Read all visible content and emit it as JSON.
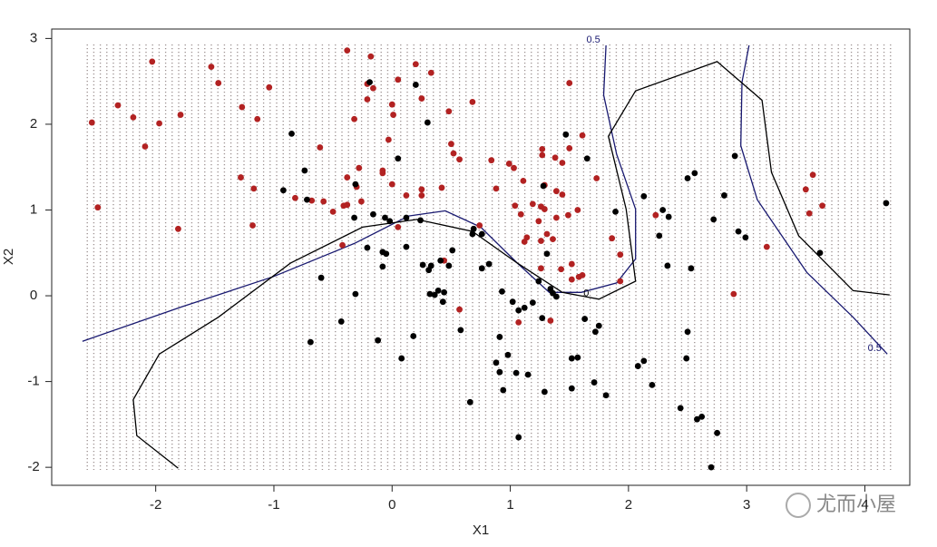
{
  "chart_data": {
    "type": "scatter",
    "xlabel": "X1",
    "ylabel": "X2",
    "xlim": [
      -2.88,
      4.38
    ],
    "ylim": [
      -2.21,
      3.11
    ],
    "xticks": [
      -2,
      -1,
      0,
      1,
      2,
      3,
      4
    ],
    "yticks": [
      -2,
      -1,
      0,
      1,
      2,
      3
    ],
    "watermark": "尤而小屋",
    "series": [
      {
        "color": "#b22222",
        "x": [
          -2.54,
          -2.49,
          -2.32,
          -2.19,
          -2.09,
          -2.03,
          -1.97,
          -1.81,
          -1.79,
          -1.53,
          -1.47,
          -1.27,
          -1.28,
          -1.17,
          -1.18,
          -1.14,
          -1.04,
          -0.82,
          -0.68,
          -0.58,
          -0.61,
          -0.5,
          -0.41,
          -0.38,
          -0.42,
          -0.38,
          -0.38,
          -0.32,
          -0.3,
          -0.28,
          -0.26,
          -0.21,
          -0.21,
          -0.18,
          -0.16,
          -0.08,
          -0.08,
          -0.03,
          0.0,
          0.01,
          0.0,
          0.05,
          0.05,
          0.12,
          0.2,
          0.25,
          0.25,
          0.25,
          0.33,
          0.42,
          0.44,
          0.48,
          0.5,
          0.52,
          0.57,
          0.57,
          0.68,
          0.74,
          0.84,
          0.88,
          0.99,
          1.03,
          1.04,
          1.07,
          1.09,
          1.12,
          1.11,
          1.14,
          1.19,
          1.24,
          1.26,
          1.26,
          1.26,
          1.27,
          1.27,
          1.29,
          1.29,
          1.31,
          1.34,
          1.36,
          1.38,
          1.39,
          1.39,
          1.44,
          1.43,
          1.44,
          1.49,
          1.5,
          1.5,
          1.52,
          1.52,
          1.57,
          1.61,
          1.58,
          1.61,
          1.73,
          1.86,
          1.93,
          1.93,
          2.23,
          2.89,
          3.17,
          3.5,
          3.53,
          3.56,
          3.64
        ],
        "y": [
          2.02,
          1.03,
          2.22,
          2.08,
          1.74,
          2.73,
          2.01,
          0.78,
          2.11,
          2.67,
          2.48,
          2.2,
          1.38,
          1.25,
          0.82,
          2.06,
          2.43,
          1.14,
          1.11,
          1.1,
          1.73,
          0.98,
          1.05,
          1.06,
          0.59,
          2.86,
          1.38,
          2.06,
          1.27,
          1.49,
          1.1,
          2.29,
          2.47,
          2.79,
          2.42,
          1.46,
          1.43,
          1.82,
          2.23,
          2.11,
          1.3,
          2.52,
          0.8,
          1.17,
          2.7,
          2.3,
          1.24,
          1.17,
          2.6,
          1.26,
          0.41,
          2.15,
          1.77,
          1.66,
          1.59,
          -0.16,
          2.26,
          0.82,
          1.58,
          1.25,
          1.54,
          1.49,
          1.05,
          -0.31,
          0.95,
          0.63,
          1.34,
          0.68,
          1.07,
          0.87,
          1.04,
          0.64,
          0.32,
          1.71,
          1.64,
          1.29,
          1.01,
          0.72,
          -0.29,
          0.66,
          1.61,
          1.22,
          0.91,
          1.18,
          0.31,
          1.55,
          0.94,
          1.72,
          2.48,
          0.19,
          0.37,
          1.0,
          1.87,
          0.22,
          0.24,
          1.37,
          0.67,
          0.17,
          0.48,
          0.94,
          0.02,
          0.57,
          1.24,
          0.96,
          1.41,
          1.05
        ]
      },
      {
        "color": "#000000",
        "x": [
          -0.85,
          -0.92,
          -0.74,
          -0.72,
          -0.69,
          -0.6,
          -0.32,
          -0.31,
          -0.31,
          -0.43,
          -0.21,
          -0.19,
          -0.16,
          -0.12,
          -0.08,
          -0.08,
          -0.06,
          -0.05,
          -0.02,
          0.05,
          0.08,
          0.12,
          0.12,
          0.18,
          0.2,
          0.24,
          0.26,
          0.3,
          0.31,
          0.32,
          0.33,
          0.36,
          0.39,
          0.41,
          0.43,
          0.44,
          0.48,
          0.51,
          0.58,
          0.66,
          0.68,
          0.69,
          0.76,
          0.76,
          0.82,
          0.88,
          0.91,
          0.91,
          0.93,
          0.94,
          0.98,
          1.02,
          1.05,
          1.07,
          1.07,
          1.12,
          1.15,
          1.19,
          1.24,
          1.27,
          1.28,
          1.29,
          1.31,
          1.34,
          1.36,
          1.39,
          1.47,
          1.52,
          1.52,
          1.57,
          1.63,
          1.65,
          1.71,
          1.72,
          1.75,
          1.81,
          1.89,
          2.08,
          2.13,
          2.13,
          2.2,
          2.26,
          2.29,
          2.33,
          2.34,
          2.44,
          2.49,
          2.5,
          2.5,
          2.53,
          2.56,
          2.58,
          2.62,
          2.7,
          2.72,
          2.75,
          2.81,
          2.9,
          2.93,
          2.99,
          3.62,
          4.18
        ],
        "y": [
          1.89,
          1.23,
          1.46,
          1.12,
          -0.54,
          0.21,
          0.91,
          1.3,
          0.02,
          -0.3,
          0.56,
          2.49,
          0.95,
          -0.52,
          0.34,
          0.51,
          0.91,
          0.49,
          0.87,
          1.6,
          -0.73,
          0.57,
          0.91,
          -0.47,
          2.46,
          0.88,
          0.36,
          2.02,
          0.3,
          0.02,
          0.35,
          0.01,
          0.06,
          0.41,
          -0.07,
          0.04,
          0.35,
          0.53,
          -0.4,
          -1.24,
          0.72,
          0.78,
          0.72,
          0.32,
          0.37,
          -0.78,
          -0.89,
          -0.48,
          0.05,
          -1.1,
          -0.69,
          -0.07,
          -0.9,
          -1.65,
          -0.17,
          -0.14,
          -0.92,
          -0.08,
          0.17,
          -0.26,
          1.28,
          -1.12,
          0.49,
          0.08,
          0.03,
          -0.01,
          1.88,
          -0.73,
          -1.08,
          -0.72,
          -0.27,
          1.6,
          -1.01,
          -0.42,
          -0.35,
          -1.16,
          0.98,
          -0.82,
          1.16,
          -0.76,
          -1.04,
          0.7,
          1.0,
          0.35,
          0.92,
          -1.31,
          -0.73,
          -0.42,
          1.37,
          0.32,
          1.43,
          -1.44,
          -1.41,
          -2.0,
          0.89,
          -1.6,
          1.17,
          1.63,
          0.75,
          0.68,
          0.5,
          1.08
        ]
      }
    ],
    "contours": [
      {
        "label": "0.5",
        "color": "#191970",
        "x": [
          -2.62,
          -1.78,
          -1.01,
          -0.32,
          0.14,
          0.45,
          0.75,
          1.06,
          1.33,
          1.6,
          1.9,
          2.06,
          2.06,
          1.9,
          1.79,
          1.81
        ],
        "y": [
          -0.53,
          -0.13,
          0.22,
          0.61,
          0.93,
          0.99,
          0.8,
          0.38,
          0.04,
          0.04,
          0.15,
          0.43,
          1.01,
          1.65,
          2.34,
          2.92
        ]
      },
      {
        "label": "0.5",
        "color": "#191970",
        "x": [
          3.02,
          2.96,
          2.95,
          3.09,
          3.51,
          3.9,
          4.19
        ],
        "y": [
          2.92,
          2.49,
          1.75,
          1.12,
          0.27,
          -0.25,
          -0.68
        ]
      },
      {
        "label": "0",
        "color": "#000000",
        "x": [
          -1.81,
          -2.16,
          -2.19,
          -1.97,
          -1.47,
          -0.86,
          -0.25,
          0.21,
          0.68,
          1.06,
          1.44,
          1.75,
          2.06,
          1.98,
          1.83,
          2.06,
          2.75,
          3.13,
          3.21,
          3.44,
          3.9,
          4.21
        ],
        "y": [
          -2.01,
          -1.63,
          -1.21,
          -0.68,
          -0.25,
          0.38,
          0.8,
          0.89,
          0.75,
          0.38,
          0.04,
          -0.04,
          0.17,
          1.01,
          1.86,
          2.39,
          2.73,
          2.28,
          1.44,
          0.7,
          0.06,
          0.01
        ]
      }
    ]
  }
}
